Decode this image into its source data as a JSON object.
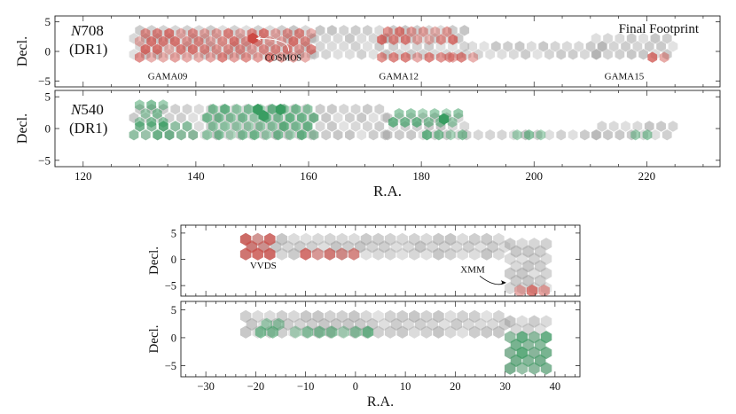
{
  "chart_data": [
    {
      "type": "scatter",
      "panel": "top-upper",
      "ylabel": "Decl.",
      "xlim": [
        115,
        233
      ],
      "ylim": [
        -6,
        6
      ],
      "yticks": [
        5,
        0,
        -5
      ],
      "xticks": [
        120,
        140,
        160,
        180,
        200,
        220
      ],
      "filter_label": {
        "italic": "N",
        "name": "708",
        "release": "(DR1)"
      },
      "corner_text": "Final Footprint",
      "field_labels": [
        {
          "text": "GAMA09",
          "x": 135,
          "y": -4.7
        },
        {
          "text": "GAMA12",
          "x": 176,
          "y": -4.7
        },
        {
          "text": "GAMA15",
          "x": 216,
          "y": -4.7
        }
      ],
      "annotation": {
        "text": "COSMOS",
        "x": 155.5,
        "y": -1.6,
        "point": [
          150.1,
          2.2
        ]
      },
      "regions": {
        "gray": [
          [
            129,
            161,
            -0.5,
            4
          ],
          [
            161,
            174,
            -0.5,
            4
          ],
          [
            174,
            188,
            -0.5,
            4
          ],
          [
            188,
            213,
            -0.5,
            1.5
          ],
          [
            211,
            225,
            -0.5,
            2.5
          ]
        ],
        "highlight": [
          [
            130,
            161,
            -1,
            4
          ],
          [
            173,
            186,
            2,
            4
          ],
          [
            173,
            186,
            -1,
            0
          ],
          [
            185,
            190,
            -1,
            0
          ],
          [
            221,
            225,
            -1,
            0
          ]
        ],
        "special": [
          [
            150.1,
            2.2
          ]
        ]
      },
      "series": [
        {
          "name": "Final Footprint",
          "color": "#a0a0a0"
        },
        {
          "name": "N708 (DR1)",
          "color": "#cd4a44"
        }
      ]
    },
    {
      "type": "scatter",
      "panel": "top-lower",
      "ylabel": "Decl.",
      "xlabel": "R.A.",
      "xlim": [
        115,
        233
      ],
      "ylim": [
        -6,
        6
      ],
      "yticks": [
        5,
        0,
        -5
      ],
      "xticks": [
        120,
        140,
        160,
        180,
        200,
        220
      ],
      "filter_label": {
        "italic": "N",
        "name": "540",
        "release": "(DR1)"
      },
      "regions": {
        "gray": [
          [
            129,
            161,
            -1,
            4
          ],
          [
            161,
            174,
            -1,
            4
          ],
          [
            174,
            188,
            -1,
            3
          ],
          [
            188,
            213,
            -1,
            0
          ],
          [
            211,
            225,
            -1,
            1.5
          ]
        ],
        "highlight": [
          [
            130,
            135,
            1,
            4
          ],
          [
            129,
            140,
            -1,
            0.5
          ],
          [
            142,
            161,
            -1,
            4
          ],
          [
            175,
            187,
            1,
            3
          ],
          [
            181,
            188,
            -1,
            0
          ],
          [
            218,
            222,
            -1,
            0
          ],
          [
            197,
            202,
            -1,
            0
          ]
        ],
        "special": [
          [
            152,
            2
          ],
          [
            155,
            3
          ],
          [
            151,
            3
          ],
          [
            184,
            1.5
          ]
        ]
      },
      "series": [
        {
          "name": "Final Footprint",
          "color": "#a0a0a0"
        },
        {
          "name": "N540 (DR1)",
          "color": "#3a9d62"
        }
      ]
    },
    {
      "type": "scatter",
      "panel": "bottom-upper",
      "ylabel": "Decl.",
      "xlim": [
        -35,
        45
      ],
      "ylim": [
        -7,
        6.5
      ],
      "yticks": [
        5,
        0,
        -5
      ],
      "xticks": [
        -30,
        -20,
        -10,
        0,
        10,
        20,
        30,
        40
      ],
      "field_labels": [
        {
          "text": "VVDS",
          "x": -18.5,
          "y": -1.8
        },
        {
          "text": "XMM",
          "x": 23.5,
          "y": -2.5
        }
      ],
      "annotation": {
        "text": "XMM",
        "x": 23.5,
        "y": -2.5,
        "point": [
          30.5,
          -4.4
        ]
      },
      "regions": {
        "gray": [
          [
            -22,
            30,
            1,
            4
          ],
          [
            31,
            39,
            -5.5,
            4
          ]
        ],
        "highlight": [
          [
            -22,
            -17,
            1,
            4
          ],
          [
            -10,
            0,
            1,
            1
          ],
          [
            33,
            39,
            -6,
            -5
          ]
        ],
        "special": []
      },
      "series": [
        {
          "name": "Final Footprint",
          "color": "#a0a0a0"
        },
        {
          "name": "N708 (DR1)",
          "color": "#cd4a44"
        }
      ]
    },
    {
      "type": "scatter",
      "panel": "bottom-lower",
      "ylabel": "Decl.",
      "xlabel": "R.A.",
      "xlim": [
        -35,
        45
      ],
      "ylim": [
        -7,
        6.5
      ],
      "yticks": [
        5,
        0,
        -5
      ],
      "xticks": [
        -30,
        -20,
        -10,
        0,
        10,
        20,
        30,
        40
      ],
      "regions": {
        "gray": [
          [
            -22,
            30,
            1,
            4
          ],
          [
            31,
            39,
            -5.5,
            4
          ]
        ],
        "highlight": [
          [
            -19,
            -15,
            1,
            3
          ],
          [
            -12,
            3,
            1,
            1
          ],
          [
            31,
            39,
            -5.5,
            1
          ]
        ],
        "special": []
      },
      "series": [
        {
          "name": "Final Footprint",
          "color": "#a0a0a0"
        },
        {
          "name": "N540 (DR1)",
          "color": "#3a9d62"
        }
      ]
    }
  ],
  "colors": {
    "gray": "#a0a0a0",
    "red": "#cd4a44",
    "green": "#3a9d62",
    "corner": "#999999"
  }
}
